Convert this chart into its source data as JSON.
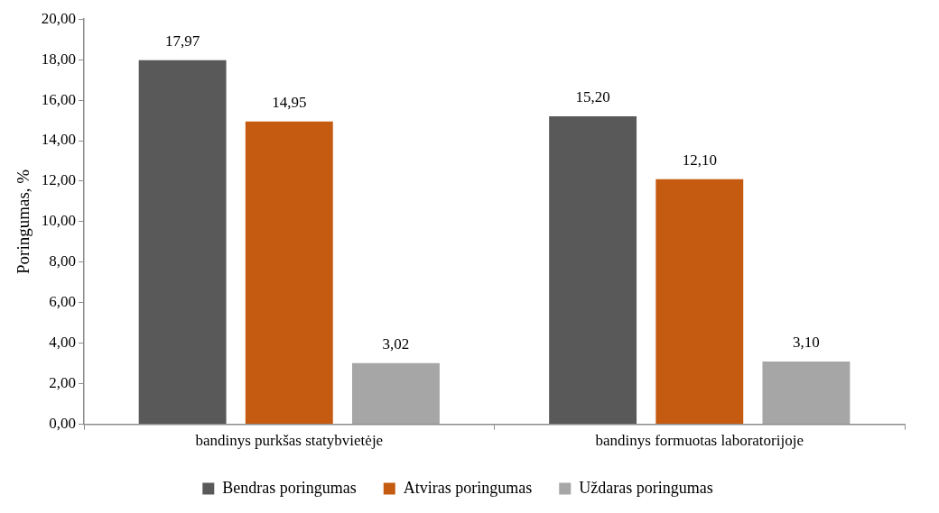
{
  "chart_data": {
    "type": "bar",
    "ylabel": "Poringumas, %",
    "categories": [
      "bandinys purkšas statybvietėje",
      "bandinys formuotas laboratorijoje"
    ],
    "series": [
      {
        "name": "Bendras poringumas",
        "color": "#595959",
        "values": [
          17.97,
          15.2
        ],
        "value_labels": [
          "17,97",
          "15,20"
        ]
      },
      {
        "name": "Atviras poringumas",
        "color": "#c55a11",
        "values": [
          14.95,
          12.1
        ],
        "value_labels": [
          "14,95",
          "12,10"
        ]
      },
      {
        "name": "Uždaras poringumas",
        "color": "#a6a6a6",
        "values": [
          3.02,
          3.1
        ],
        "value_labels": [
          "3,02",
          "3,10"
        ]
      }
    ],
    "ylim": [
      0,
      20
    ],
    "yticks": [
      {
        "value": 0,
        "label": "0,00"
      },
      {
        "value": 2,
        "label": "2,00"
      },
      {
        "value": 4,
        "label": "4,00"
      },
      {
        "value": 6,
        "label": "6,00"
      },
      {
        "value": 8,
        "label": "8,00"
      },
      {
        "value": 10,
        "label": "10,00"
      },
      {
        "value": 12,
        "label": "12,00"
      },
      {
        "value": 14,
        "label": "14,00"
      },
      {
        "value": 16,
        "label": "16,00"
      },
      {
        "value": 18,
        "label": "18,00"
      },
      {
        "value": 20,
        "label": "20,00"
      }
    ],
    "grid": false,
    "legend": "bottom"
  }
}
